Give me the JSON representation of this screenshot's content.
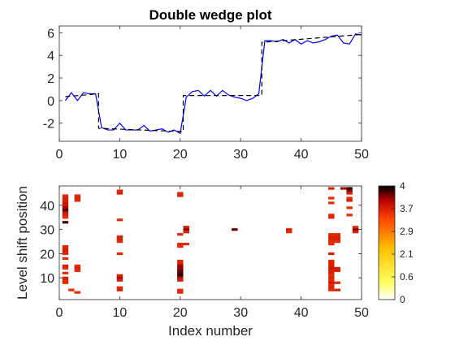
{
  "chart_data": [
    {
      "type": "line",
      "title": "Double wedge plot",
      "xlabel": "",
      "ylabel": "",
      "xlim": [
        0,
        50
      ],
      "ylim": [
        -3.6,
        6.6
      ],
      "xticks": [
        0,
        10,
        20,
        30,
        40,
        50
      ],
      "yticks": [
        -2,
        0,
        2,
        4,
        6
      ],
      "grid": false,
      "series": [
        {
          "color": "#0000ff",
          "style": "solid",
          "x": [
            1,
            2,
            3,
            4,
            5,
            6,
            7,
            8,
            9,
            10,
            11,
            12,
            13,
            14,
            15,
            16,
            17,
            18,
            19,
            20,
            21,
            22,
            23,
            24,
            25,
            26,
            27,
            28,
            29,
            30,
            31,
            32,
            33,
            34,
            35,
            36,
            37,
            38,
            39,
            40,
            41,
            42,
            43,
            44,
            45,
            46,
            47,
            48,
            49,
            50
          ],
          "y": [
            0.0,
            0.7,
            0.0,
            0.7,
            0.6,
            0.6,
            -2.4,
            -2.6,
            -2.6,
            -2.0,
            -2.6,
            -2.6,
            -2.6,
            -2.2,
            -2.7,
            -2.6,
            -2.5,
            -2.8,
            -2.6,
            -2.9,
            0.3,
            0.8,
            0.9,
            0.4,
            0.9,
            0.4,
            0.9,
            0.5,
            0.3,
            0.2,
            0.0,
            0.2,
            0.6,
            5.3,
            5.3,
            5.2,
            5.4,
            5.1,
            5.4,
            5.0,
            5.3,
            5.1,
            5.2,
            5.4,
            5.7,
            5.8,
            5.1,
            5.0,
            5.9,
            5.8
          ]
        },
        {
          "color": "#000000",
          "style": "dashed",
          "x": [
            1,
            6.5,
            6.5,
            20.5,
            20.5,
            33.5,
            33.5,
            50
          ],
          "y": [
            0.35,
            0.6,
            -2.45,
            -2.75,
            0.45,
            0.45,
            5.15,
            5.85
          ]
        }
      ]
    },
    {
      "type": "heatmap",
      "title": "",
      "xlabel": "Index number",
      "ylabel": "Level shift position",
      "xlim": [
        0,
        50
      ],
      "ylim": [
        1,
        48
      ],
      "xticks": [
        0,
        10,
        20,
        30,
        40,
        50
      ],
      "yticks": [
        10,
        20,
        30,
        40
      ],
      "colorbar": {
        "min": 0,
        "max": 4,
        "tick_labels": [
          "0",
          "0.6",
          "2.1",
          "2.9",
          "3.7",
          "4"
        ]
      },
      "cells": [
        [
          1,
          44,
          3.1
        ],
        [
          1,
          43,
          3.2
        ],
        [
          1,
          42,
          3.2
        ],
        [
          1,
          41,
          3.3
        ],
        [
          1,
          40,
          3.3
        ],
        [
          1,
          39,
          3.5
        ],
        [
          1,
          38,
          3.8
        ],
        [
          1,
          37,
          3.3
        ],
        [
          1,
          36,
          3.2
        ],
        [
          1,
          35,
          3.1
        ],
        [
          1,
          33,
          3.8
        ],
        [
          1,
          23,
          3.1
        ],
        [
          1,
          22,
          3.2
        ],
        [
          1,
          21,
          3.2
        ],
        [
          1,
          20,
          3.1
        ],
        [
          1,
          18,
          3.1
        ],
        [
          1,
          15,
          3.2
        ],
        [
          1,
          14,
          3.1
        ],
        [
          1,
          12,
          3.1
        ],
        [
          1,
          10,
          3.2
        ],
        [
          1,
          9,
          3.2
        ],
        [
          1,
          8,
          3.1
        ],
        [
          2,
          5,
          3.1
        ],
        [
          3,
          44,
          3.1
        ],
        [
          3,
          43,
          3.2
        ],
        [
          3,
          42,
          3.1
        ],
        [
          3,
          15,
          3.1
        ],
        [
          3,
          14,
          3.2
        ],
        [
          3,
          13,
          3.1
        ],
        [
          3,
          4,
          3.1
        ],
        [
          10,
          46,
          3.1
        ],
        [
          10,
          45,
          3.2
        ],
        [
          10,
          34,
          3.1
        ],
        [
          10,
          27,
          3.2
        ],
        [
          10,
          26,
          3.2
        ],
        [
          10,
          25,
          3.1
        ],
        [
          10,
          20,
          3.1
        ],
        [
          10,
          11,
          3.2
        ],
        [
          10,
          10,
          3.5
        ],
        [
          10,
          9,
          3.2
        ],
        [
          10,
          6,
          3.1
        ],
        [
          10,
          5,
          3.2
        ],
        [
          20,
          45,
          3.1
        ],
        [
          20,
          44,
          3.2
        ],
        [
          20,
          28,
          3.1
        ],
        [
          20,
          24,
          3.1
        ],
        [
          20,
          23,
          3.1
        ],
        [
          20,
          17,
          3.1
        ],
        [
          20,
          16,
          3.2
        ],
        [
          20,
          15,
          3.6
        ],
        [
          20,
          14,
          3.6
        ],
        [
          20,
          13,
          3.7
        ],
        [
          20,
          12,
          3.8
        ],
        [
          20,
          11,
          3.9
        ],
        [
          20,
          10,
          3.4
        ],
        [
          20,
          9,
          3.2
        ],
        [
          20,
          5,
          3.1
        ],
        [
          20,
          4,
          3.1
        ],
        [
          21,
          24,
          3.1
        ],
        [
          21,
          31,
          3.2
        ],
        [
          21,
          30,
          3.6
        ],
        [
          21,
          29,
          3.2
        ],
        [
          29,
          30,
          3.7
        ],
        [
          38,
          30,
          3.2
        ],
        [
          38,
          29,
          3.1
        ],
        [
          45,
          47,
          3.2
        ],
        [
          45,
          43,
          3.1
        ],
        [
          45,
          41,
          3.1
        ],
        [
          45,
          36,
          3.1
        ],
        [
          45,
          35,
          3.2
        ],
        [
          45,
          28,
          3.1
        ],
        [
          45,
          27,
          3.2
        ],
        [
          45,
          26,
          3.2
        ],
        [
          45,
          25,
          3.1
        ],
        [
          45,
          24,
          3.1
        ],
        [
          45,
          20,
          3.2
        ],
        [
          45,
          17,
          3.1
        ],
        [
          45,
          16,
          3.2
        ],
        [
          45,
          15,
          3.2
        ],
        [
          45,
          14,
          3.3
        ],
        [
          45,
          13,
          3.2
        ],
        [
          45,
          12,
          3.2
        ],
        [
          45,
          11,
          3.1
        ],
        [
          45,
          10,
          3.2
        ],
        [
          45,
          9,
          3.1
        ],
        [
          45,
          8,
          3.3
        ],
        [
          45,
          7,
          3.1
        ],
        [
          45,
          6,
          3.2
        ],
        [
          45,
          5,
          3.1
        ],
        [
          46,
          28,
          3.1
        ],
        [
          46,
          27,
          3.2
        ],
        [
          46,
          26,
          3.2
        ],
        [
          46,
          25,
          3.1
        ],
        [
          46,
          14,
          3.2
        ],
        [
          46,
          13,
          3.2
        ],
        [
          46,
          8,
          3.1
        ],
        [
          46,
          5,
          3.2
        ],
        [
          47,
          47,
          3.5
        ],
        [
          48,
          47,
          3.9
        ],
        [
          48,
          46,
          3.6
        ],
        [
          48,
          45,
          3.2
        ],
        [
          48,
          43,
          3.1
        ],
        [
          48,
          42,
          3.2
        ],
        [
          48,
          39,
          3.1
        ],
        [
          48,
          36,
          3.1
        ],
        [
          49,
          31,
          3.1
        ],
        [
          49,
          30,
          3.6
        ],
        [
          49,
          29,
          3.2
        ]
      ]
    }
  ]
}
